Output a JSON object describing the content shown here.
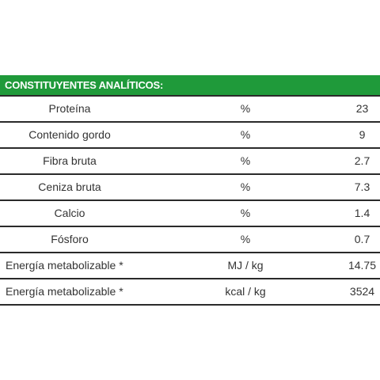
{
  "table": {
    "header": "CONSTITUYENTES ANALÍTICOS:",
    "rows": [
      {
        "name": "Proteína",
        "unit": "%",
        "value": "23"
      },
      {
        "name": "Contenido gordo",
        "unit": "%",
        "value": "9"
      },
      {
        "name": "Fibra bruta",
        "unit": "%",
        "value": "2.7"
      },
      {
        "name": "Ceniza bruta",
        "unit": "%",
        "value": "7.3"
      },
      {
        "name": "Calcio",
        "unit": "%",
        "value": "1.4"
      },
      {
        "name": "Fósforo",
        "unit": "%",
        "value": "0.7"
      },
      {
        "name": "Energía metabolizable *",
        "unit": "MJ / kg",
        "value": "14.75"
      },
      {
        "name": "Energía metabolizable *",
        "unit": "kcal / kg",
        "value": "3524"
      }
    ]
  },
  "colors": {
    "header_bg": "#1f9a3a",
    "header_text": "#ffffff",
    "row_border": "#2a2a2a",
    "text": "#333333"
  }
}
